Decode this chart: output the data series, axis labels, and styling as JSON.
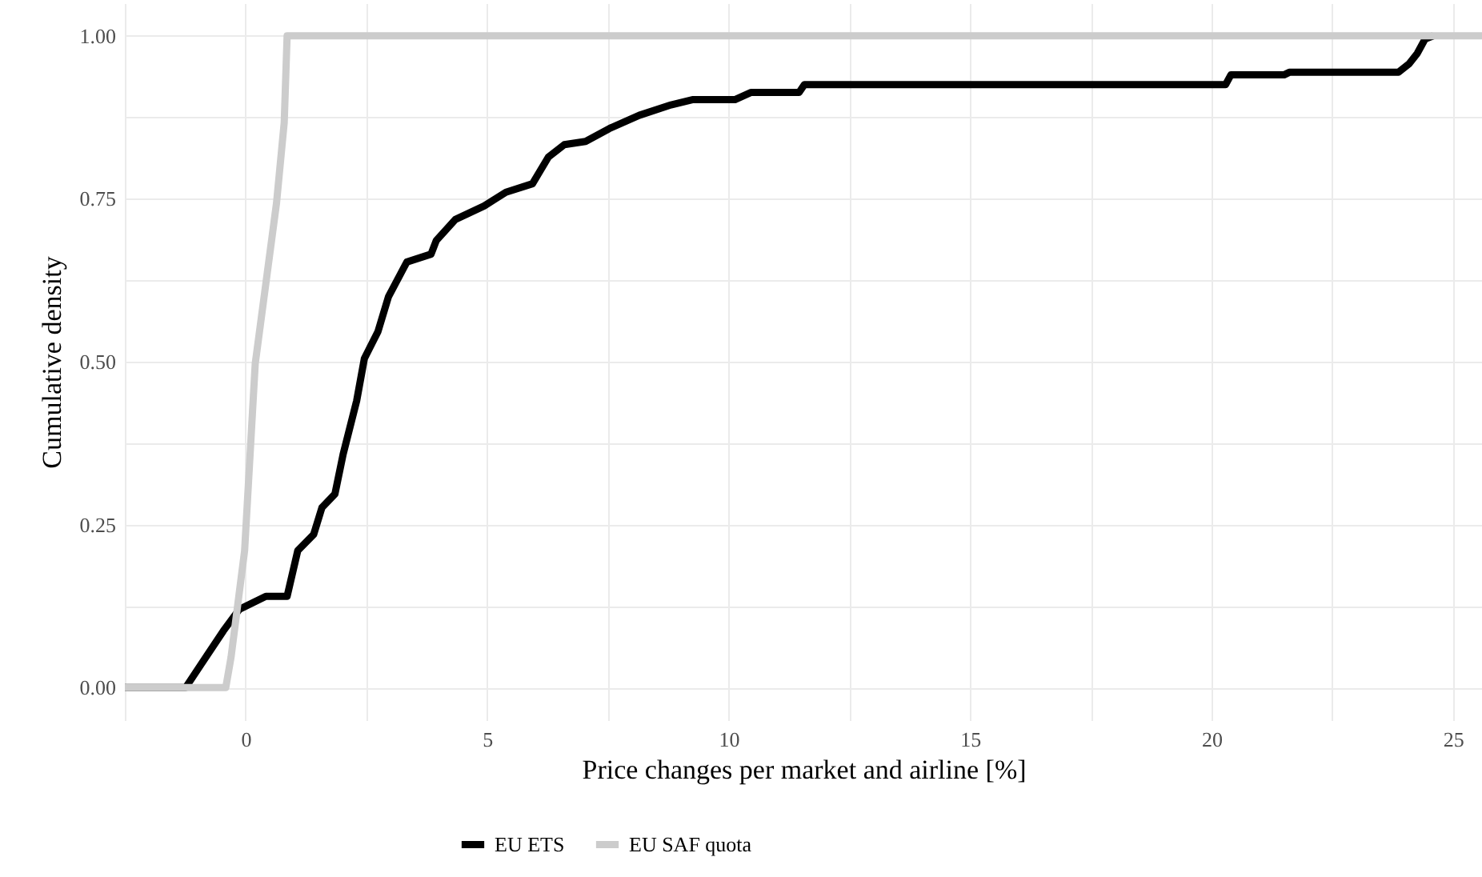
{
  "chart_data": {
    "type": "line",
    "xlabel": "Price changes per market and airline [%]",
    "ylabel": "Cumulative density",
    "xlim": [
      -2.5,
      25.6
    ],
    "ylim": [
      -0.05,
      1.05
    ],
    "xticks": [
      {
        "value": -2.5,
        "label": null
      },
      0,
      {
        "value": 2.5,
        "label": null
      },
      5,
      {
        "value": 7.5,
        "label": null
      },
      10,
      {
        "value": 12.5,
        "label": null
      },
      15,
      {
        "value": 17.5,
        "label": null
      },
      20,
      {
        "value": 22.5,
        "label": null
      },
      25
    ],
    "yticks": [
      {
        "value": 0,
        "label": "0.00"
      },
      {
        "value": 0.125,
        "label": null
      },
      {
        "value": 0.25,
        "label": "0.25"
      },
      {
        "value": 0.375,
        "label": null
      },
      {
        "value": 0.5,
        "label": "0.50"
      },
      {
        "value": 0.625,
        "label": null
      },
      {
        "value": 0.75,
        "label": "0.75"
      },
      {
        "value": 0.875,
        "label": null
      },
      {
        "value": 1,
        "label": "1.00"
      }
    ],
    "grid": true,
    "legend": "bottom",
    "line_style": "solid",
    "series": [
      {
        "name": "EU ETS",
        "color": "#000000",
        "x": [
          -2.5,
          -1.24,
          -0.46,
          -0.13,
          0.42,
          0.86,
          1.08,
          1.41,
          1.58,
          1.85,
          2.02,
          2.3,
          2.46,
          2.74,
          2.96,
          3.34,
          3.84,
          3.95,
          4.34,
          4.94,
          5.39,
          5.94,
          6.27,
          6.6,
          7.04,
          7.54,
          8.15,
          8.81,
          9.25,
          10.13,
          10.46,
          11.46,
          11.57,
          20.29,
          20.4,
          21.5,
          21.61,
          23.87,
          24.09,
          24.26,
          24.42,
          24.59
        ],
        "values": [
          0,
          0,
          0.087,
          0.12,
          0.14,
          0.14,
          0.21,
          0.235,
          0.276,
          0.297,
          0.358,
          0.44,
          0.505,
          0.546,
          0.6,
          0.653,
          0.665,
          0.686,
          0.718,
          0.739,
          0.76,
          0.773,
          0.814,
          0.833,
          0.838,
          0.858,
          0.878,
          0.894,
          0.902,
          0.902,
          0.913,
          0.913,
          0.925,
          0.925,
          0.94,
          0.94,
          0.944,
          0.944,
          0.957,
          0.973,
          0.995,
          1
        ]
      },
      {
        "name": "EU SAF quota",
        "color": "#cccccc",
        "x": [
          -2.5,
          -0.41,
          -0.3,
          -0.02,
          0.2,
          0.42,
          0.64,
          0.8,
          0.86,
          25.6
        ],
        "values": [
          0,
          0,
          0.047,
          0.21,
          0.497,
          0.62,
          0.743,
          0.867,
          1,
          1
        ]
      }
    ]
  }
}
